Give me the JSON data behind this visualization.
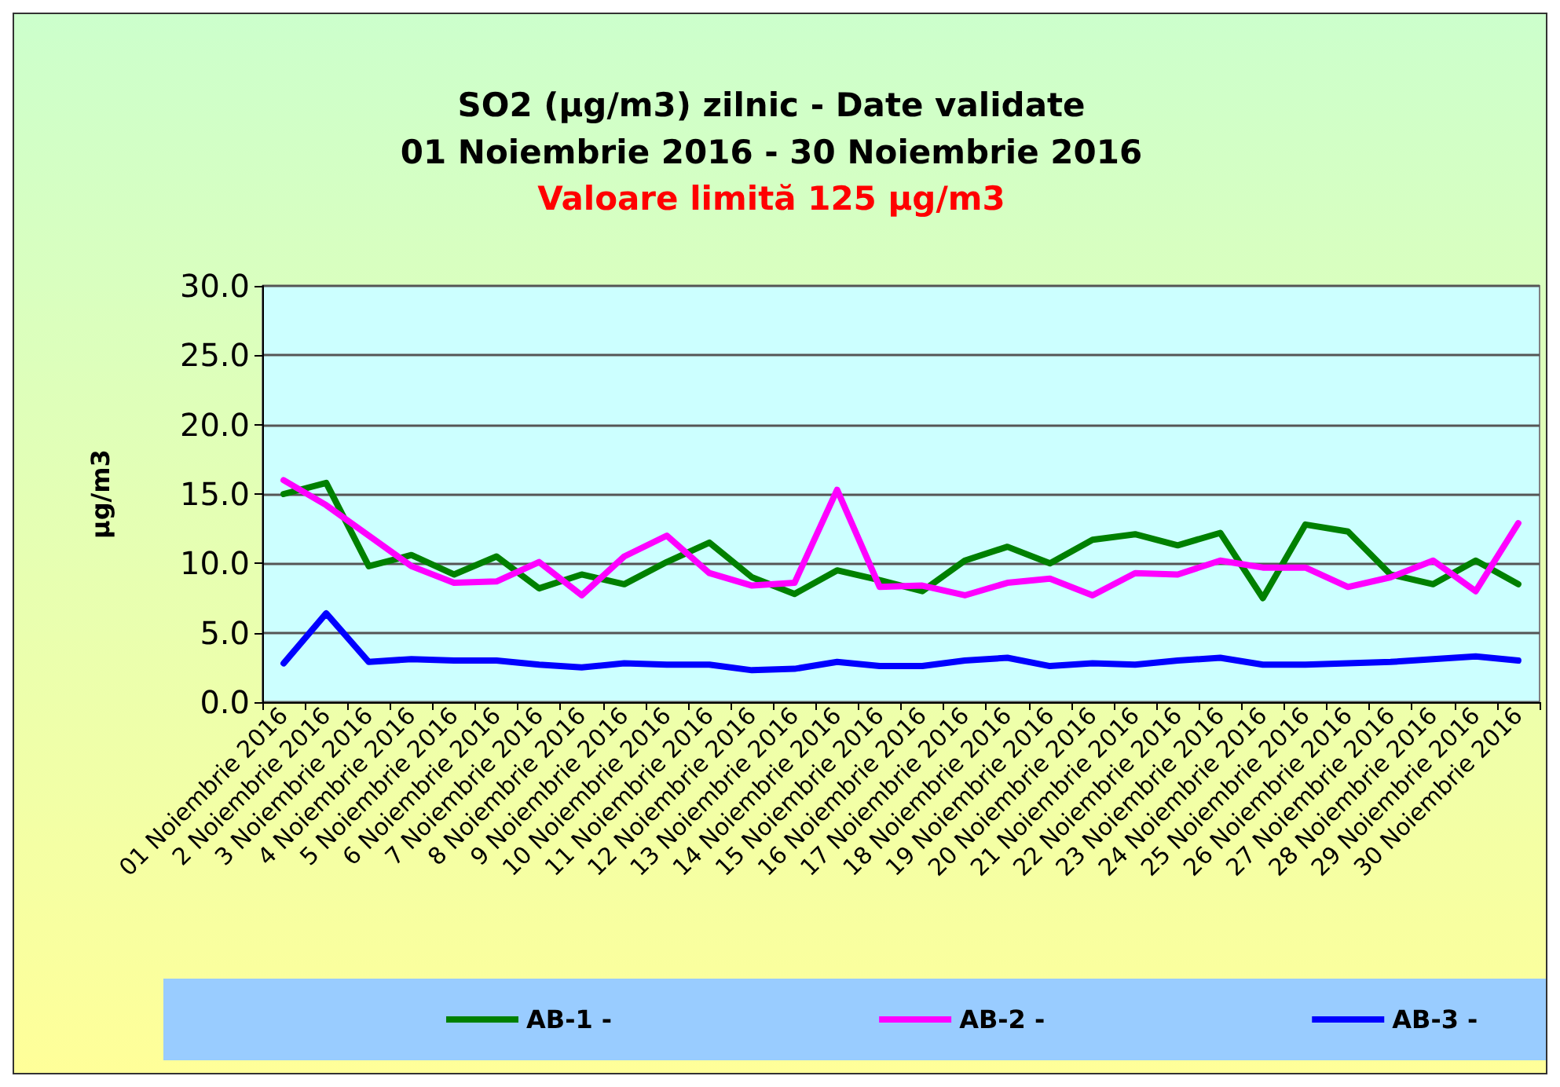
{
  "chart_data": {
    "type": "line",
    "title": "SO2 (µg/m3) zilnic - Date validate\n01 Noiembrie 2016 - 30 Noiembrie 2016",
    "subtitle": "Valoare limită 125 µg/m3",
    "ylabel": "µg/m3",
    "categories": [
      "01 Noiembrie 2016",
      "2 Noiembrie 2016",
      "3 Noiembrie 2016",
      "4 Noiembrie 2016",
      "5 Noiembrie 2016",
      "6 Noiembrie 2016",
      "7 Noiembrie 2016",
      "8 Noiembrie 2016",
      "9 Noiembrie 2016",
      "10 Noiembrie 2016",
      "11 Noiembrie 2016",
      "12 Noiembrie 2016",
      "13 Noiembrie 2016",
      "14 Noiembrie 2016",
      "15 Noiembrie 2016",
      "16 Noiembrie 2016",
      "17 Noiembrie 2016",
      "18 Noiembrie 2016",
      "19 Noiembrie 2016",
      "20 Noiembrie 2016",
      "21 Noiembrie 2016",
      "22 Noiembrie 2016",
      "23 Noiembrie 2016",
      "24 Noiembrie 2016",
      "25 Noiembrie 2016",
      "26 Noiembrie 2016",
      "27 Noiembrie 2016",
      "28 Noiembrie 2016",
      "29 Noiembrie 2016",
      "30 Noiembrie 2016"
    ],
    "series": [
      {
        "name": "AB-1 -",
        "color": "#008000",
        "values": [
          15.0,
          15.8,
          9.8,
          10.6,
          9.2,
          10.5,
          8.2,
          9.2,
          8.5,
          10.1,
          11.5,
          9.0,
          7.8,
          9.5,
          8.8,
          8.0,
          10.2,
          11.2,
          10.0,
          11.7,
          12.1,
          11.3,
          12.2,
          7.5,
          12.8,
          12.3,
          9.2,
          8.5,
          10.2,
          8.5
        ]
      },
      {
        "name": "AB-2 -",
        "color": "#ff00ff",
        "values": [
          16.0,
          14.2,
          12.0,
          9.8,
          8.6,
          8.7,
          10.1,
          7.7,
          10.5,
          12.0,
          9.3,
          8.4,
          8.6,
          15.3,
          8.3,
          8.4,
          7.7,
          8.6,
          8.9,
          7.7,
          9.3,
          9.2,
          10.2,
          9.7,
          9.7,
          8.3,
          9.0,
          10.2,
          8.0,
          12.9
        ]
      },
      {
        "name": "AB-3 -",
        "color": "#0000ff",
        "values": [
          2.8,
          6.4,
          2.9,
          3.1,
          3.0,
          3.0,
          2.7,
          2.5,
          2.8,
          2.7,
          2.7,
          2.3,
          2.4,
          2.9,
          2.6,
          2.6,
          3.0,
          3.2,
          2.6,
          2.8,
          2.7,
          3.0,
          3.2,
          2.7,
          2.7,
          2.8,
          2.9,
          3.1,
          3.3,
          3.0
        ]
      }
    ],
    "ylim": [
      0,
      30
    ],
    "yticks": [
      {
        "value": 0,
        "label": "0.0"
      },
      {
        "value": 5,
        "label": "5.0"
      },
      {
        "value": 10,
        "label": "10.0"
      },
      {
        "value": 15,
        "label": "15.0"
      },
      {
        "value": 20,
        "label": "20.0"
      },
      {
        "value": 25,
        "label": "25.0"
      },
      {
        "value": 30,
        "label": "30.0"
      }
    ],
    "grid": "y",
    "legend": "bottom",
    "marker": "none",
    "line_style": "solid"
  }
}
